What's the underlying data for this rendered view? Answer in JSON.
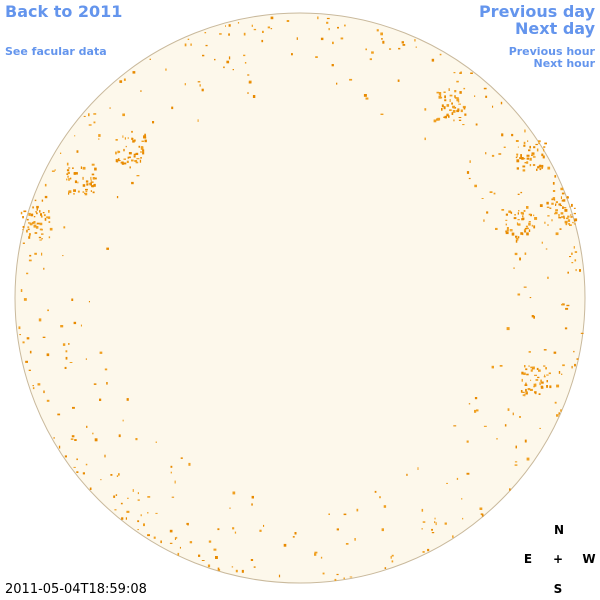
{
  "navigation": {
    "back": "Back to 2011",
    "facular": "See facular data",
    "previous_day": "Previous day",
    "next_day": "Next day",
    "previous_hour": "Previous hour",
    "next_hour": "Next hour"
  },
  "timestamp": "2011-05-04T18:59:08",
  "compass": {
    "north": "N",
    "east": "E",
    "center": "+",
    "west": "W",
    "south": "S"
  }
}
